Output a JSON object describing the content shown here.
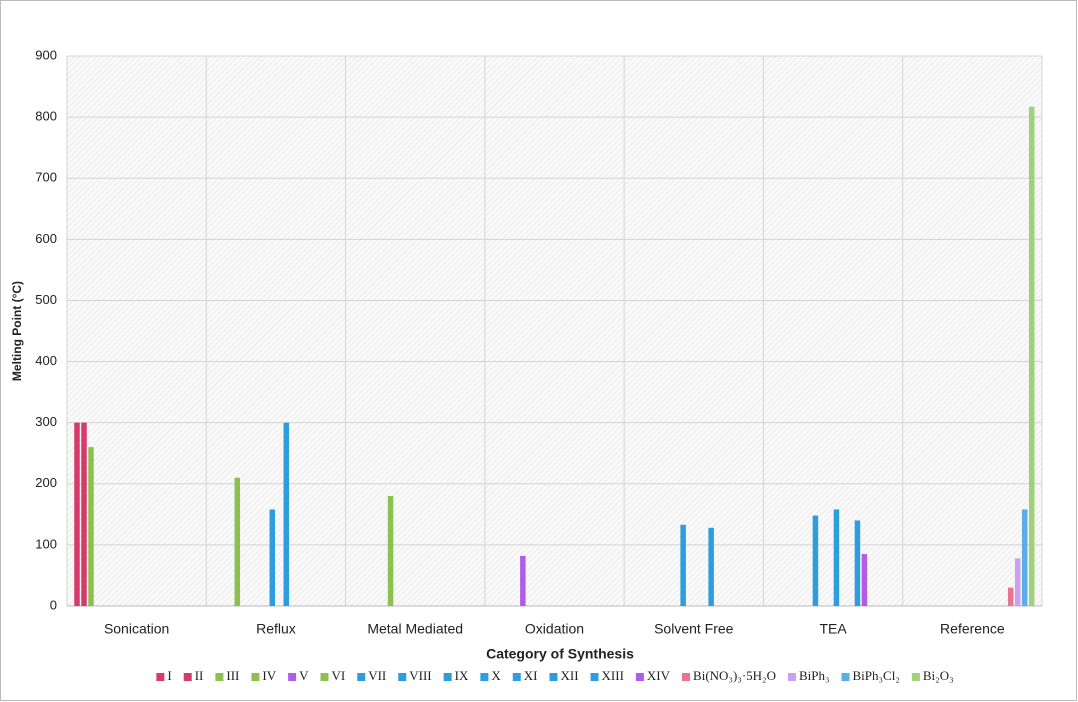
{
  "chart_data": {
    "type": "bar",
    "x_label": "Category of Synthesis",
    "y_label": "Melting Point (°C)",
    "categories": [
      "Sonication",
      "Reflux",
      "Metal Mediated",
      "Oxidation",
      "Solvent Free",
      "TEA",
      "Reference"
    ],
    "ylim": [
      0,
      900
    ],
    "yticks": [
      0,
      100,
      200,
      300,
      400,
      500,
      600,
      700,
      800,
      900
    ],
    "grid": true,
    "legend": "bottom",
    "series": [
      {
        "name": "I",
        "color": "#d63a6a",
        "values": [
          300,
          null,
          null,
          null,
          null,
          null,
          null
        ]
      },
      {
        "name": "II",
        "color": "#d63a6a",
        "values": [
          300,
          null,
          null,
          null,
          null,
          null,
          null
        ]
      },
      {
        "name": "III",
        "color": "#8cc152",
        "values": [
          260,
          null,
          null,
          null,
          null,
          null,
          null
        ]
      },
      {
        "name": "IV",
        "color": "#8cc152",
        "values": [
          null,
          210,
          null,
          null,
          null,
          null,
          null
        ]
      },
      {
        "name": "V",
        "color": "#b05ce6",
        "values": [
          null,
          null,
          null,
          82,
          null,
          null,
          null
        ]
      },
      {
        "name": "VI",
        "color": "#8cc152",
        "values": [
          null,
          null,
          180,
          null,
          null,
          null,
          null
        ]
      },
      {
        "name": "VII",
        "color": "#2e9de0",
        "values": [
          null,
          null,
          null,
          null,
          null,
          148,
          null
        ]
      },
      {
        "name": "VIII",
        "color": "#2e9de0",
        "values": [
          null,
          null,
          null,
          null,
          133,
          null,
          null
        ]
      },
      {
        "name": "IX",
        "color": "#2e9de0",
        "values": [
          null,
          158,
          null,
          null,
          null,
          null,
          null
        ]
      },
      {
        "name": "X",
        "color": "#2e9de0",
        "values": [
          null,
          null,
          null,
          null,
          null,
          158,
          null
        ]
      },
      {
        "name": "XI",
        "color": "#2e9de0",
        "values": [
          null,
          300,
          null,
          null,
          null,
          null,
          null
        ]
      },
      {
        "name": "XII",
        "color": "#2e9de0",
        "values": [
          null,
          null,
          null,
          null,
          128,
          null,
          null
        ]
      },
      {
        "name": "XIII",
        "color": "#2e9de0",
        "values": [
          null,
          null,
          null,
          null,
          null,
          140,
          null
        ]
      },
      {
        "name": "XIV",
        "color": "#b05ce6",
        "values": [
          null,
          null,
          null,
          null,
          null,
          85,
          null
        ]
      },
      {
        "name": "Bi(NO₃)₃·5H₂O",
        "color": "#e8748f",
        "values": [
          null,
          null,
          null,
          null,
          null,
          null,
          30
        ]
      },
      {
        "name": "BiPh₃",
        "color": "#cc9ff0",
        "values": [
          null,
          null,
          null,
          null,
          null,
          null,
          78
        ]
      },
      {
        "name": "BiPh₃Cl₂",
        "color": "#5aaee6",
        "values": [
          null,
          null,
          null,
          null,
          null,
          null,
          158
        ]
      },
      {
        "name": "Bi₂O₃",
        "color": "#9fd07a",
        "values": [
          null,
          null,
          null,
          null,
          null,
          null,
          817
        ]
      }
    ]
  }
}
